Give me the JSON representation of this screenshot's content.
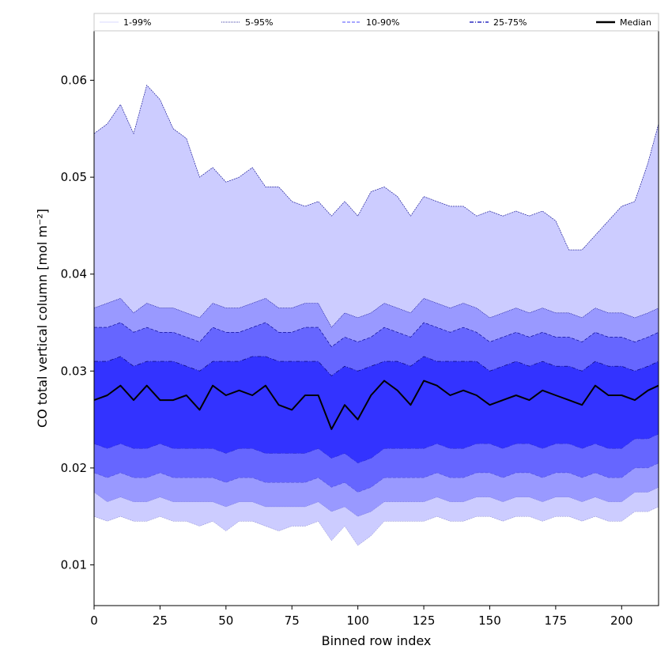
{
  "chart_data": {
    "type": "area",
    "title": "",
    "xlabel": "Binned row index",
    "ylabel": "CO total vertical column [mol m⁻²]",
    "xlim": [
      0,
      214
    ],
    "ylim": [
      0.0058,
      0.0651
    ],
    "x_ticks": [
      0,
      25,
      50,
      75,
      100,
      125,
      150,
      175,
      200
    ],
    "y_ticks": [
      0.01,
      0.02,
      0.03,
      0.04,
      0.05,
      0.06
    ],
    "legend": {
      "placement": "top, spanning width",
      "entries": [
        {
          "label": "1-99%",
          "color": "#ccccff",
          "style": "solid thin"
        },
        {
          "label": "5-95%",
          "color": "#00008b",
          "style": "dotted thin"
        },
        {
          "label": "10-90%",
          "color": "#4d4dff",
          "style": "dashed"
        },
        {
          "label": "25-75%",
          "color": "#0000b3",
          "style": "dash-dot"
        },
        {
          "label": "Median",
          "color": "#000000",
          "style": "solid thick"
        }
      ]
    },
    "x": [
      0,
      5,
      10,
      15,
      20,
      25,
      30,
      35,
      40,
      45,
      50,
      55,
      60,
      65,
      70,
      75,
      80,
      85,
      90,
      95,
      100,
      105,
      110,
      115,
      120,
      125,
      130,
      135,
      140,
      145,
      150,
      155,
      160,
      165,
      170,
      175,
      180,
      185,
      190,
      195,
      200,
      205,
      210,
      214
    ],
    "bands": [
      {
        "name": "1-99%",
        "color": "#ccccff",
        "upper": [
          0.0545,
          0.0555,
          0.0575,
          0.0545,
          0.0595,
          0.058,
          0.055,
          0.054,
          0.05,
          0.051,
          0.0495,
          0.05,
          0.051,
          0.049,
          0.049,
          0.0475,
          0.047,
          0.0475,
          0.046,
          0.0475,
          0.046,
          0.0485,
          0.049,
          0.048,
          0.046,
          0.048,
          0.0475,
          0.047,
          0.047,
          0.046,
          0.0465,
          0.046,
          0.0465,
          0.046,
          0.0465,
          0.0455,
          0.0425,
          0.0425,
          0.044,
          0.0455,
          0.047,
          0.0475,
          0.0515,
          0.0555
        ],
        "lower": [
          0.015,
          0.0145,
          0.015,
          0.0145,
          0.0145,
          0.015,
          0.0145,
          0.0145,
          0.014,
          0.0145,
          0.0135,
          0.0145,
          0.0145,
          0.014,
          0.0135,
          0.014,
          0.014,
          0.0145,
          0.0125,
          0.014,
          0.012,
          0.013,
          0.0145,
          0.0145,
          0.0145,
          0.0145,
          0.015,
          0.0145,
          0.0145,
          0.015,
          0.015,
          0.0145,
          0.015,
          0.015,
          0.0145,
          0.015,
          0.015,
          0.0145,
          0.015,
          0.0145,
          0.0145,
          0.0155,
          0.0155,
          0.016
        ]
      },
      {
        "name": "5-95%",
        "color": "#9999ff",
        "upper": [
          0.0365,
          0.037,
          0.0375,
          0.036,
          0.037,
          0.0365,
          0.0365,
          0.036,
          0.0355,
          0.037,
          0.0365,
          0.0365,
          0.037,
          0.0375,
          0.0365,
          0.0365,
          0.037,
          0.037,
          0.0345,
          0.036,
          0.0355,
          0.036,
          0.037,
          0.0365,
          0.036,
          0.0375,
          0.037,
          0.0365,
          0.037,
          0.0365,
          0.0355,
          0.036,
          0.0365,
          0.036,
          0.0365,
          0.036,
          0.036,
          0.0355,
          0.0365,
          0.036,
          0.036,
          0.0355,
          0.036,
          0.0365
        ],
        "lower": [
          0.0175,
          0.0165,
          0.017,
          0.0165,
          0.0165,
          0.017,
          0.0165,
          0.0165,
          0.0165,
          0.0165,
          0.016,
          0.0165,
          0.0165,
          0.016,
          0.016,
          0.016,
          0.016,
          0.0165,
          0.0155,
          0.016,
          0.015,
          0.0155,
          0.0165,
          0.0165,
          0.0165,
          0.0165,
          0.017,
          0.0165,
          0.0165,
          0.017,
          0.017,
          0.0165,
          0.017,
          0.017,
          0.0165,
          0.017,
          0.017,
          0.0165,
          0.017,
          0.0165,
          0.0165,
          0.0175,
          0.0175,
          0.018
        ]
      },
      {
        "name": "10-90%",
        "color": "#6666ff",
        "upper": [
          0.0345,
          0.0345,
          0.035,
          0.034,
          0.0345,
          0.034,
          0.034,
          0.0335,
          0.033,
          0.0345,
          0.034,
          0.034,
          0.0345,
          0.035,
          0.034,
          0.034,
          0.0345,
          0.0345,
          0.0325,
          0.0335,
          0.033,
          0.0335,
          0.0345,
          0.034,
          0.0335,
          0.035,
          0.0345,
          0.034,
          0.0345,
          0.034,
          0.033,
          0.0335,
          0.034,
          0.0335,
          0.034,
          0.0335,
          0.0335,
          0.033,
          0.034,
          0.0335,
          0.0335,
          0.033,
          0.0335,
          0.034
        ],
        "lower": [
          0.0195,
          0.019,
          0.0195,
          0.019,
          0.019,
          0.0195,
          0.019,
          0.019,
          0.019,
          0.019,
          0.0185,
          0.019,
          0.019,
          0.0185,
          0.0185,
          0.0185,
          0.0185,
          0.019,
          0.018,
          0.0185,
          0.0175,
          0.018,
          0.019,
          0.019,
          0.019,
          0.019,
          0.0195,
          0.019,
          0.019,
          0.0195,
          0.0195,
          0.019,
          0.0195,
          0.0195,
          0.019,
          0.0195,
          0.0195,
          0.019,
          0.0195,
          0.019,
          0.019,
          0.02,
          0.02,
          0.0205
        ]
      },
      {
        "name": "25-75%",
        "color": "#3333ff",
        "upper": [
          0.031,
          0.031,
          0.0315,
          0.0305,
          0.031,
          0.031,
          0.031,
          0.0305,
          0.03,
          0.031,
          0.031,
          0.031,
          0.0315,
          0.0315,
          0.031,
          0.031,
          0.031,
          0.031,
          0.0295,
          0.0305,
          0.03,
          0.0305,
          0.031,
          0.031,
          0.0305,
          0.0315,
          0.031,
          0.031,
          0.031,
          0.031,
          0.03,
          0.0305,
          0.031,
          0.0305,
          0.031,
          0.0305,
          0.0305,
          0.03,
          0.031,
          0.0305,
          0.0305,
          0.03,
          0.0305,
          0.031
        ],
        "lower": [
          0.0225,
          0.022,
          0.0225,
          0.022,
          0.022,
          0.0225,
          0.022,
          0.022,
          0.022,
          0.022,
          0.0215,
          0.022,
          0.022,
          0.0215,
          0.0215,
          0.0215,
          0.0215,
          0.022,
          0.021,
          0.0215,
          0.0205,
          0.021,
          0.022,
          0.022,
          0.022,
          0.022,
          0.0225,
          0.022,
          0.022,
          0.0225,
          0.0225,
          0.022,
          0.0225,
          0.0225,
          0.022,
          0.0225,
          0.0225,
          0.022,
          0.0225,
          0.022,
          0.022,
          0.023,
          0.023,
          0.0235
        ]
      }
    ],
    "series": [
      {
        "name": "Median",
        "color": "#000000",
        "values": [
          0.027,
          0.0275,
          0.0285,
          0.027,
          0.0285,
          0.027,
          0.027,
          0.0275,
          0.026,
          0.0285,
          0.0275,
          0.028,
          0.0275,
          0.0285,
          0.0265,
          0.026,
          0.0275,
          0.0275,
          0.024,
          0.0265,
          0.025,
          0.0275,
          0.029,
          0.028,
          0.0265,
          0.029,
          0.0285,
          0.0275,
          0.028,
          0.0275,
          0.0265,
          0.027,
          0.0275,
          0.027,
          0.028,
          0.0275,
          0.027,
          0.0265,
          0.0285,
          0.0275,
          0.0275,
          0.027,
          0.028,
          0.0285
        ]
      }
    ]
  }
}
